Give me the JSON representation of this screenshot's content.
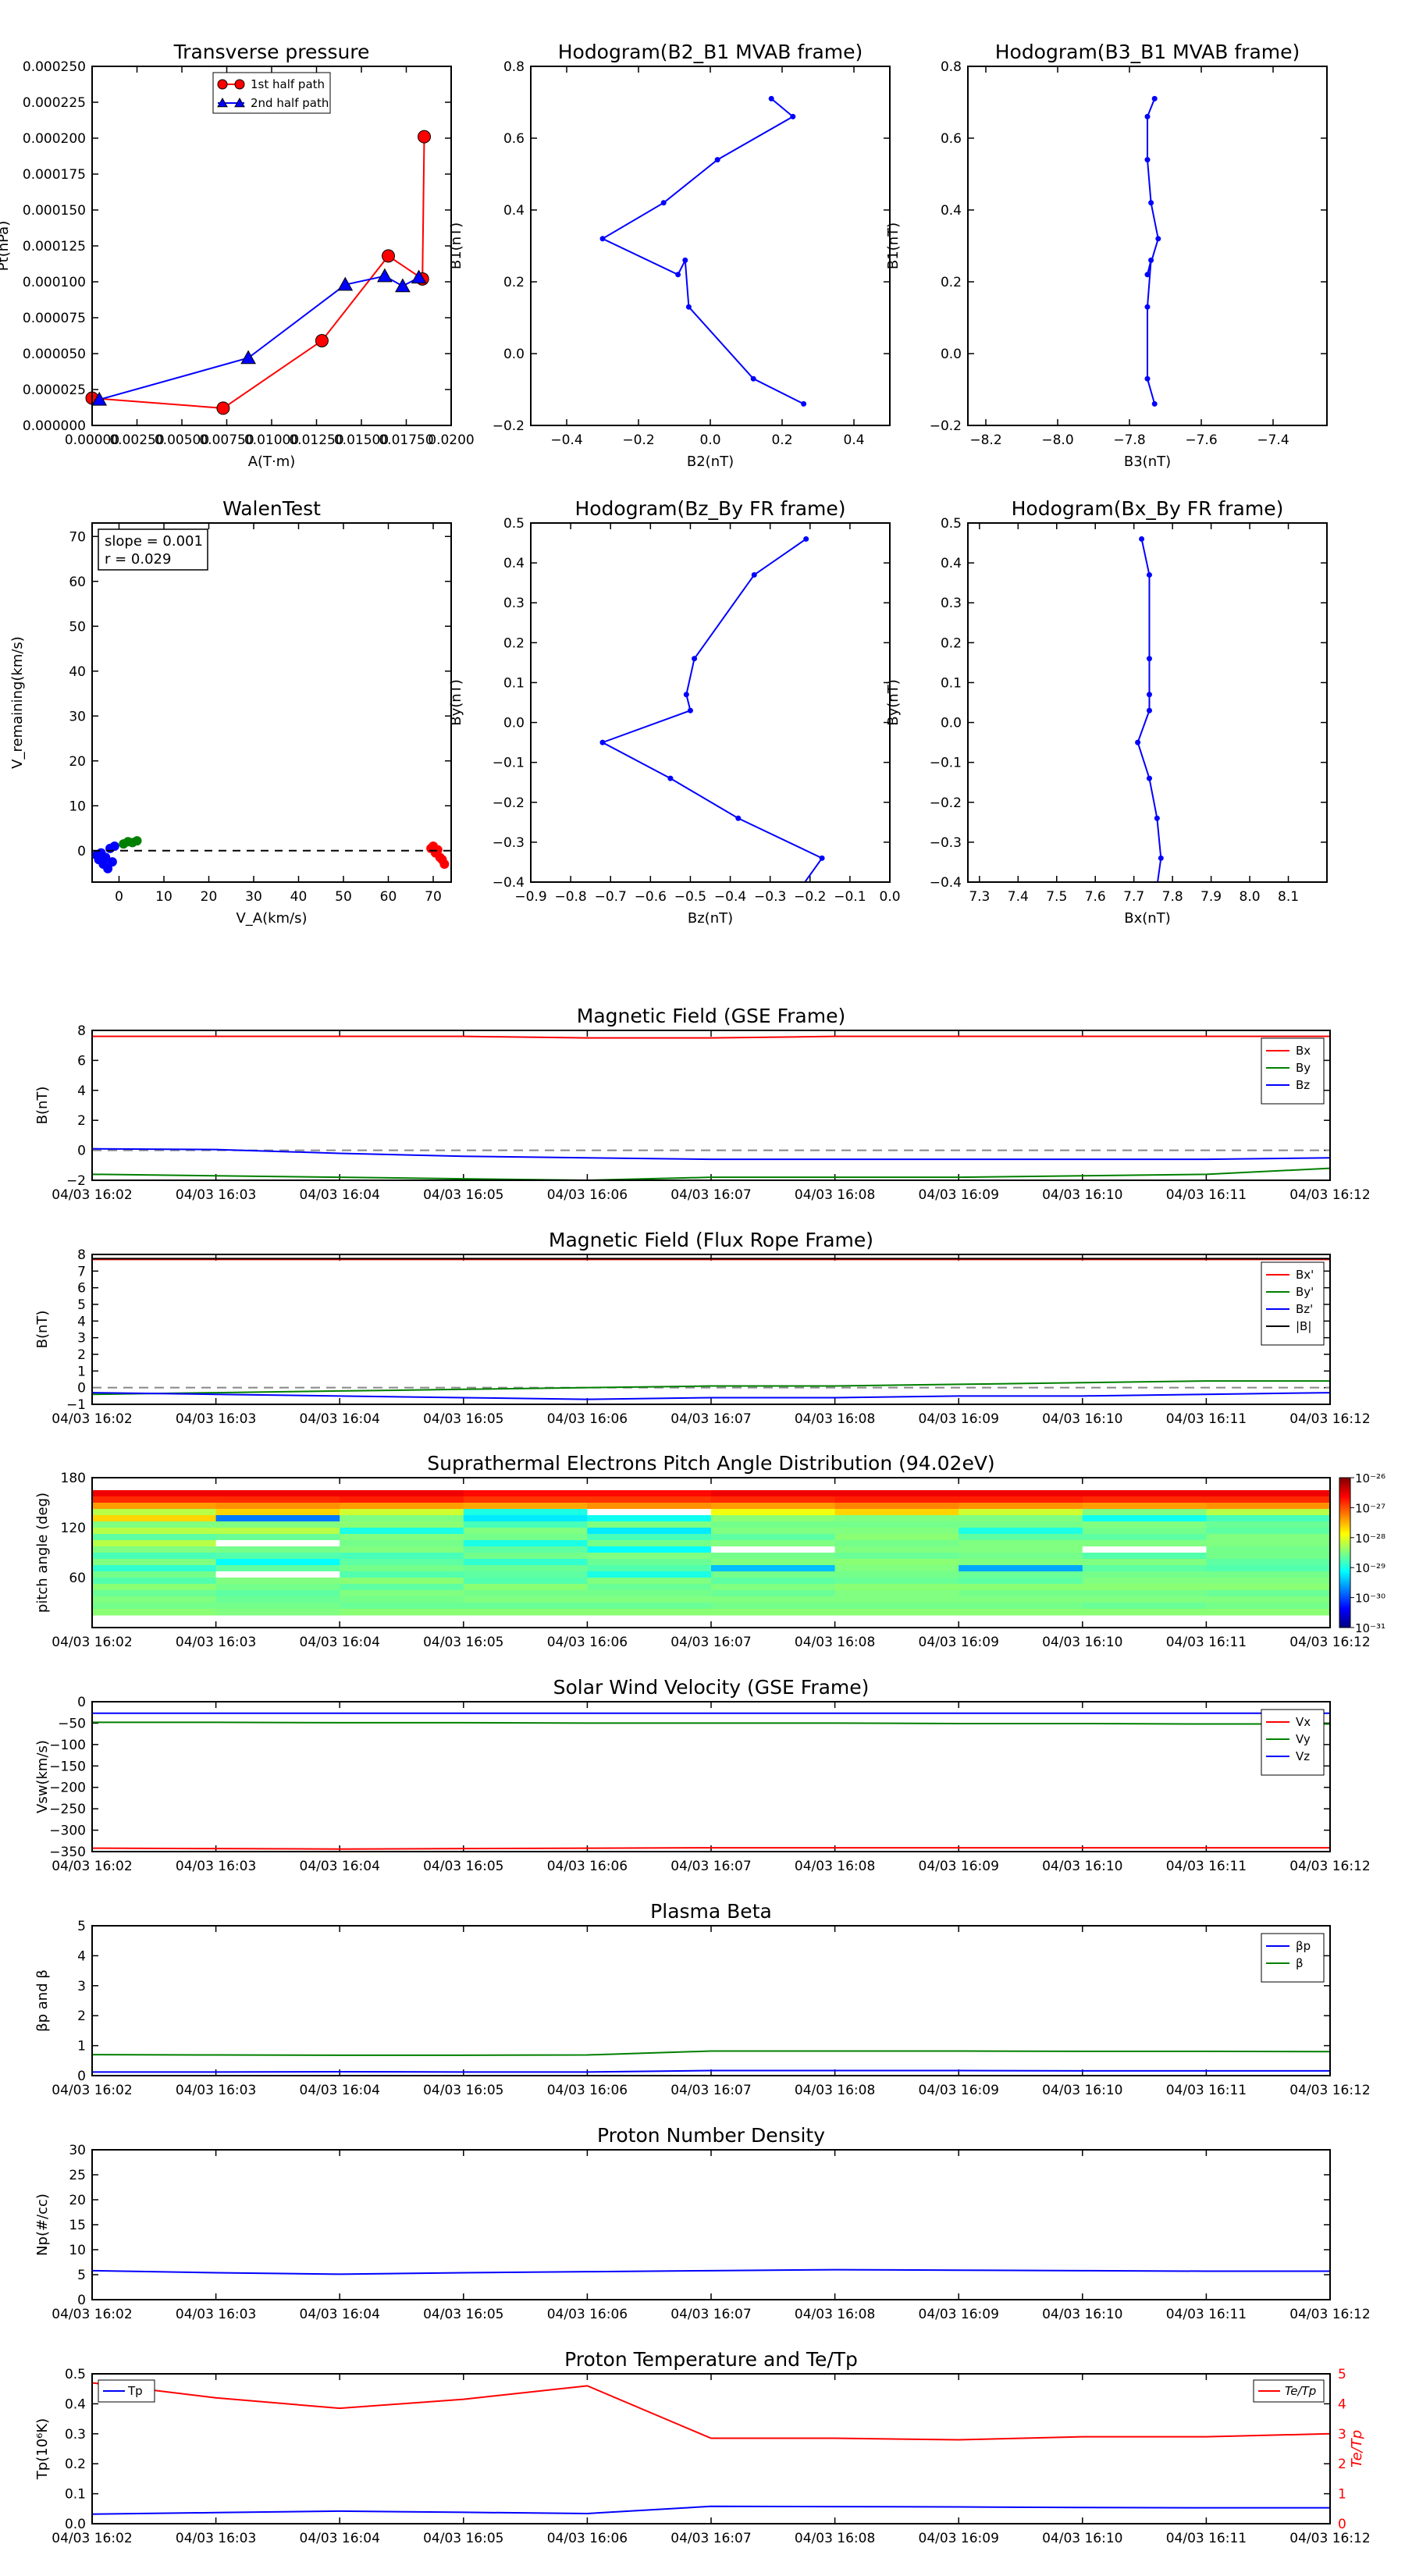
{
  "chart_data": [
    {
      "id": "tp",
      "type": "line",
      "title": "Transverse pressure",
      "xlabel": "A(T·m)",
      "ylabel": "Pt(nPa)",
      "xlim": [
        0,
        0.02
      ],
      "ylim": [
        0,
        0.00025
      ],
      "xticks": [
        "0.00000",
        "0.00250",
        "0.00500",
        "0.00750",
        "0.01000",
        "0.01250",
        "0.01500",
        "0.01750",
        "0.0200"
      ],
      "yticks": [
        "0.000000",
        "0.000025",
        "0.000050",
        "0.000075",
        "0.000100",
        "0.000125",
        "0.000150",
        "0.000175",
        "0.000200",
        "0.000225",
        "0.000250"
      ],
      "legend": "top-center",
      "series": [
        {
          "name": "1st half path",
          "color": "#ff0000",
          "marker": "circle",
          "x": [
            0.0,
            0.0073,
            0.0128,
            0.0165,
            0.0184,
            0.0185
          ],
          "y": [
            1.9e-05,
            1.2e-05,
            5.9e-05,
            0.000118,
            0.000102,
            0.000201
          ]
        },
        {
          "name": "2nd half path",
          "color": "#0000ff",
          "marker": "triangle",
          "x": [
            0.0004,
            0.0087,
            0.0141,
            0.0163,
            0.0173,
            0.0182
          ],
          "y": [
            1.8e-05,
            4.7e-05,
            9.8e-05,
            0.000104,
            9.7e-05,
            0.000103
          ]
        }
      ]
    },
    {
      "id": "h1",
      "type": "line",
      "title": "Hodogram(B2_B1 MVAB frame)",
      "xlabel": "B2(nT)",
      "ylabel": "B1(nT)",
      "xlim": [
        -0.5,
        0.5
      ],
      "ylim": [
        -0.2,
        0.8
      ],
      "xticks": [
        "−0.4",
        "−0.2",
        "0.0",
        "0.2",
        "0.4"
      ],
      "yticks": [
        "−0.2",
        "0.0",
        "0.2",
        "0.4",
        "0.6",
        "0.8"
      ],
      "series": [
        {
          "color": "#0000ff",
          "x": [
            0.17,
            0.23,
            0.02,
            -0.13,
            -0.3,
            -0.09,
            -0.07,
            -0.06,
            0.12,
            0.26
          ],
          "y": [
            0.71,
            0.66,
            0.54,
            0.42,
            0.32,
            0.22,
            0.26,
            0.13,
            -0.07,
            -0.14
          ]
        }
      ]
    },
    {
      "id": "h2",
      "type": "line",
      "title": "Hodogram(B3_B1 MVAB frame)",
      "xlabel": "B3(nT)",
      "ylabel": "B1(nT)",
      "xlim": [
        -8.25,
        -7.25
      ],
      "ylim": [
        -0.2,
        0.8
      ],
      "xticks": [
        "−8.2",
        "−8.0",
        "−7.8",
        "−7.6",
        "−7.4"
      ],
      "yticks": [
        "−0.2",
        "0.0",
        "0.2",
        "0.4",
        "0.6",
        "0.8"
      ],
      "series": [
        {
          "color": "#0000ff",
          "x": [
            -7.73,
            -7.75,
            -7.75,
            -7.74,
            -7.72,
            -7.75,
            -7.74,
            -7.75,
            -7.75,
            -7.73
          ],
          "y": [
            0.71,
            0.66,
            0.54,
            0.42,
            0.32,
            0.22,
            0.26,
            0.13,
            -0.07,
            -0.14
          ]
        }
      ]
    },
    {
      "id": "walen",
      "type": "scatter",
      "title": "WalenTest",
      "xlabel": "V_A(km/s)",
      "ylabel": "V_remaining(km/s)",
      "xlim": [
        -6,
        74
      ],
      "ylim": [
        -7,
        73
      ],
      "xticks": [
        "0",
        "10",
        "20",
        "30",
        "40",
        "50",
        "60",
        "70"
      ],
      "yticks": [
        "0",
        "10",
        "20",
        "30",
        "40",
        "50",
        "60",
        "70"
      ],
      "annotation": [
        "slope = 0.001",
        "r = 0.029"
      ],
      "series": [
        {
          "color": "#0000ff",
          "x": [
            -5,
            -4.5,
            -4,
            -3.5,
            -3,
            -2.5,
            -2,
            -1.5,
            -1
          ],
          "y": [
            -1,
            -2,
            -0.5,
            -3,
            -1.5,
            -4,
            0.5,
            -2.5,
            1
          ]
        },
        {
          "color": "#008000",
          "x": [
            1,
            2,
            3,
            4
          ],
          "y": [
            1.5,
            2,
            1.8,
            2.2
          ]
        },
        {
          "color": "#ff0000",
          "x": [
            69.5,
            70,
            70.5,
            71,
            71.5,
            72,
            72.5
          ],
          "y": [
            0.5,
            1,
            -0.5,
            0.2,
            -1.5,
            -2,
            -3
          ]
        }
      ]
    },
    {
      "id": "h3",
      "type": "line",
      "title": "Hodogram(Bz_By FR frame)",
      "xlabel": "Bz(nT)",
      "ylabel": "By(nT)",
      "xlim": [
        -0.9,
        0.0
      ],
      "ylim": [
        -0.4,
        0.5
      ],
      "xticks": [
        "−0.9",
        "−0.8",
        "−0.7",
        "−0.6",
        "−0.5",
        "−0.4",
        "−0.3",
        "−0.2",
        "−0.1",
        "0.0"
      ],
      "yticks": [
        "−0.4",
        "−0.3",
        "−0.2",
        "−0.1",
        "0.0",
        "0.1",
        "0.2",
        "0.3",
        "0.4",
        "0.5"
      ],
      "series": [
        {
          "color": "#0000ff",
          "x": [
            -0.21,
            -0.34,
            -0.49,
            -0.51,
            -0.5,
            -0.72,
            -0.55,
            -0.38,
            -0.17,
            -0.22
          ],
          "y": [
            0.46,
            0.37,
            0.16,
            0.07,
            0.03,
            -0.05,
            -0.14,
            -0.24,
            -0.34,
            -0.41
          ]
        }
      ]
    },
    {
      "id": "h4",
      "type": "line",
      "title": "Hodogram(Bx_By FR frame)",
      "xlabel": "Bx(nT)",
      "ylabel": "By(nT)",
      "xlim": [
        7.27,
        8.2
      ],
      "ylim": [
        -0.4,
        0.5
      ],
      "xticks": [
        "7.3",
        "7.4",
        "7.5",
        "7.6",
        "7.7",
        "7.8",
        "7.9",
        "8.0",
        "8.1"
      ],
      "yticks": [
        "−0.4",
        "−0.3",
        "−0.2",
        "−0.1",
        "0.0",
        "0.1",
        "0.2",
        "0.3",
        "0.4",
        "0.5"
      ],
      "series": [
        {
          "color": "#0000ff",
          "x": [
            7.72,
            7.74,
            7.74,
            7.74,
            7.74,
            7.71,
            7.74,
            7.76,
            7.77,
            7.76
          ],
          "y": [
            0.46,
            0.37,
            0.16,
            0.07,
            0.03,
            -0.05,
            -0.14,
            -0.24,
            -0.34,
            -0.41
          ]
        }
      ]
    },
    {
      "id": "mag_gse",
      "type": "line",
      "title": "Magnetic Field (GSE Frame)",
      "ylabel": "B(nT)",
      "ylim": [
        -2,
        8
      ],
      "yticks": [
        "−2",
        "0",
        "2",
        "4",
        "6",
        "8"
      ],
      "categories": [
        "04/03 16:02",
        "04/03 16:03",
        "04/03 16:04",
        "04/03 16:05",
        "04/03 16:06",
        "04/03 16:07",
        "04/03 16:08",
        "04/03 16:09",
        "04/03 16:10",
        "04/03 16:11",
        "04/03 16:12"
      ],
      "zero_line": true,
      "legend": "right",
      "series": [
        {
          "name": "Bx",
          "color": "#ff0000",
          "values": [
            7.6,
            7.6,
            7.6,
            7.6,
            7.5,
            7.5,
            7.6,
            7.6,
            7.6,
            7.6,
            7.6
          ]
        },
        {
          "name": "By",
          "color": "#008000",
          "values": [
            -1.6,
            -1.7,
            -1.8,
            -1.9,
            -2.0,
            -1.8,
            -1.8,
            -1.8,
            -1.7,
            -1.6,
            -1.2
          ]
        },
        {
          "name": "Bz",
          "color": "#0000ff",
          "values": [
            0.1,
            0.05,
            -0.2,
            -0.4,
            -0.5,
            -0.6,
            -0.6,
            -0.6,
            -0.6,
            -0.6,
            -0.5
          ]
        }
      ]
    },
    {
      "id": "mag_fr",
      "type": "line",
      "title": "Magnetic Field (Flux Rope Frame)",
      "ylabel": "B(nT)",
      "ylim": [
        -1,
        8
      ],
      "yticks": [
        "−1",
        "0",
        "1",
        "2",
        "3",
        "4",
        "5",
        "6",
        "7",
        "8"
      ],
      "categories": [
        "04/03 16:02",
        "04/03 16:03",
        "04/03 16:04",
        "04/03 16:05",
        "04/03 16:06",
        "04/03 16:07",
        "04/03 16:08",
        "04/03 16:09",
        "04/03 16:10",
        "04/03 16:11",
        "04/03 16:12"
      ],
      "zero_line": true,
      "legend": "right",
      "series": [
        {
          "name": "Bx'",
          "color": "#ff0000",
          "values": [
            7.7,
            7.7,
            7.7,
            7.7,
            7.7,
            7.7,
            7.7,
            7.7,
            7.7,
            7.7,
            7.7
          ]
        },
        {
          "name": "By'",
          "color": "#008000",
          "values": [
            -0.4,
            -0.3,
            -0.2,
            -0.1,
            0.0,
            0.1,
            0.1,
            0.2,
            0.3,
            0.4,
            0.4
          ]
        },
        {
          "name": "Bz'",
          "color": "#0000ff",
          "values": [
            -0.3,
            -0.4,
            -0.5,
            -0.6,
            -0.7,
            -0.6,
            -0.6,
            -0.5,
            -0.5,
            -0.4,
            -0.3
          ]
        },
        {
          "name": "|B|",
          "color": "#000000",
          "values": [
            7.75,
            7.75,
            7.75,
            7.75,
            7.75,
            7.75,
            7.75,
            7.75,
            7.75,
            7.75,
            7.75
          ]
        }
      ]
    },
    {
      "id": "pad",
      "type": "heatmap",
      "title": "Suprathermal Electrons Pitch Angle Distribution (94.02eV)",
      "ylabel": "pitch angle (deg)",
      "ylim": [
        0,
        180
      ],
      "yticks": [
        "60",
        "120",
        "180"
      ],
      "ytick_values": [
        60,
        120,
        180
      ],
      "categories": [
        "04/03 16:02",
        "04/03 16:03",
        "04/03 16:04",
        "04/03 16:05",
        "04/03 16:06",
        "04/03 16:07",
        "04/03 16:08",
        "04/03 16:09",
        "04/03 16:10",
        "04/03 16:11",
        "04/03 16:12"
      ],
      "colorbar_ticks": [
        "10⁻²⁶",
        "10⁻²⁷",
        "10⁻²⁸",
        "10⁻²⁹",
        "10⁻³⁰",
        "10⁻³¹"
      ],
      "bins_top_to_bottom": 20,
      "columns": [
        [
          8,
          7.5,
          6.5,
          5,
          6,
          4.5,
          5,
          4.2,
          5,
          4.5,
          4,
          4.5,
          3.8,
          4.4,
          4.1,
          4.6,
          4.3,
          4.5,
          4.4,
          4.6
        ],
        [
          8,
          7.5,
          6.6,
          6,
          2.2,
          4.5,
          5,
          4.3,
          9,
          4.4,
          4.1,
          3.4,
          4.2,
          9,
          4.5,
          4.4,
          4.2,
          4.3,
          4.4,
          4.5
        ],
        [
          8,
          7.6,
          6.5,
          5.2,
          4.5,
          4.6,
          3.6,
          4.5,
          4.4,
          4.5,
          4,
          4.2,
          4.4,
          4.1,
          4.6,
          4.2,
          4.5,
          4.4,
          4.3,
          4.6
        ],
        [
          7.8,
          7.4,
          6.4,
          3.6,
          3.2,
          4,
          4.5,
          4.4,
          3.6,
          4.2,
          4.4,
          3.8,
          4.3,
          4.2,
          4.1,
          4.6,
          4.4,
          4.5,
          4.3,
          4.6
        ],
        [
          7.8,
          7.4,
          6.6,
          9,
          3.5,
          4.5,
          3.2,
          4,
          4.4,
          3.4,
          4.5,
          4.3,
          4.1,
          3.6,
          4.5,
          4.3,
          4.4,
          4.5,
          4.3,
          4.6
        ],
        [
          8,
          7.5,
          6.5,
          5.5,
          4.6,
          4.4,
          4.5,
          4.2,
          4.5,
          9,
          4.4,
          4.5,
          2.8,
          4.4,
          4.2,
          4.5,
          4.3,
          4.5,
          4.4,
          4.6
        ],
        [
          8,
          7.6,
          6.7,
          6,
          4.5,
          4.4,
          4.5,
          4.6,
          4.4,
          4.5,
          4.3,
          4.6,
          4.5,
          4.4,
          4.3,
          4.6,
          4.5,
          4.5,
          4.4,
          4.6
        ],
        [
          8,
          7.6,
          6.6,
          5.2,
          4.5,
          4.4,
          3.6,
          4.2,
          4.5,
          4.5,
          4.4,
          4.5,
          2.6,
          4.3,
          4.2,
          4.6,
          4.4,
          4.5,
          4.4,
          4.6
        ],
        [
          8,
          7.5,
          6.5,
          4.5,
          3.5,
          4.5,
          4.4,
          4.2,
          4.5,
          9,
          4.1,
          4.5,
          4.2,
          4.4,
          4.5,
          4.6,
          4.4,
          4.5,
          4.3,
          4.6
        ],
        [
          8,
          7.5,
          6.6,
          5,
          4,
          4.3,
          4.2,
          4.5,
          4.5,
          4.4,
          4.4,
          4.2,
          4.1,
          4.4,
          4.5,
          4.6,
          4.3,
          4.5,
          4.4,
          4.6
        ]
      ]
    },
    {
      "id": "vsw",
      "type": "line",
      "title": "Solar Wind Velocity (GSE Frame)",
      "ylabel": "Vsw(km/s)",
      "ylim": [
        -350,
        0
      ],
      "yticks": [
        "−350",
        "−300",
        "−250",
        "−200",
        "−150",
        "−100",
        "−50",
        "0"
      ],
      "categories": [
        "04/03 16:02",
        "04/03 16:03",
        "04/03 16:04",
        "04/03 16:05",
        "04/03 16:06",
        "04/03 16:07",
        "04/03 16:08",
        "04/03 16:09",
        "04/03 16:10",
        "04/03 16:11",
        "04/03 16:12"
      ],
      "legend": "right",
      "series": [
        {
          "name": "Vx",
          "color": "#ff0000",
          "values": [
            -342,
            -343,
            -344,
            -343,
            -342,
            -341,
            -341,
            -341,
            -341,
            -341,
            -341
          ]
        },
        {
          "name": "Vy",
          "color": "#008000",
          "values": [
            -48,
            -48,
            -49,
            -49,
            -50,
            -50,
            -50,
            -51,
            -51,
            -52,
            -52
          ]
        },
        {
          "name": "Vz",
          "color": "#0000ff",
          "values": [
            -27,
            -27,
            -27,
            -27,
            -27,
            -27,
            -27,
            -27,
            -27,
            -27,
            -27
          ]
        }
      ]
    },
    {
      "id": "beta",
      "type": "line",
      "title": "Plasma Beta",
      "ylabel": "βp and β",
      "ylim": [
        0,
        5
      ],
      "yticks": [
        "0",
        "1",
        "2",
        "3",
        "4",
        "5"
      ],
      "categories": [
        "04/03 16:02",
        "04/03 16:03",
        "04/03 16:04",
        "04/03 16:05",
        "04/03 16:06",
        "04/03 16:07",
        "04/03 16:08",
        "04/03 16:09",
        "04/03 16:10",
        "04/03 16:11",
        "04/03 16:12"
      ],
      "legend": "right",
      "series": [
        {
          "name": "βp",
          "color": "#0000ff",
          "values": [
            0.12,
            0.12,
            0.13,
            0.12,
            0.12,
            0.17,
            0.17,
            0.17,
            0.16,
            0.16,
            0.16
          ]
        },
        {
          "name": "β",
          "color": "#008000",
          "values": [
            0.7,
            0.69,
            0.68,
            0.68,
            0.69,
            0.82,
            0.82,
            0.82,
            0.81,
            0.81,
            0.8
          ]
        }
      ]
    },
    {
      "id": "np",
      "type": "line",
      "title": "Proton Number Density",
      "ylabel": "Np(#/cc)",
      "ylim": [
        0,
        30
      ],
      "yticks": [
        "0",
        "5",
        "10",
        "15",
        "20",
        "25",
        "30"
      ],
      "categories": [
        "04/03 16:02",
        "04/03 16:03",
        "04/03 16:04",
        "04/03 16:05",
        "04/03 16:06",
        "04/03 16:07",
        "04/03 16:08",
        "04/03 16:09",
        "04/03 16:10",
        "04/03 16:11",
        "04/03 16:12"
      ],
      "series": [
        {
          "color": "#0000ff",
          "values": [
            5.8,
            5.4,
            5.1,
            5.4,
            5.6,
            5.8,
            6.0,
            5.9,
            5.8,
            5.7,
            5.7
          ]
        }
      ]
    },
    {
      "id": "temp",
      "type": "line",
      "title": "Proton Temperature and Te/Tp",
      "ylabel": "Tp(10⁶K)",
      "ylabel_right": "Te/Tp",
      "ylim": [
        0,
        0.5
      ],
      "ylim_right": [
        0,
        5
      ],
      "yticks": [
        "0.0",
        "0.1",
        "0.2",
        "0.3",
        "0.4",
        "0.5"
      ],
      "yticks_right": [
        "0",
        "1",
        "2",
        "3",
        "4",
        "5"
      ],
      "categories": [
        "04/03 16:02",
        "04/03 16:03",
        "04/03 16:04",
        "04/03 16:05",
        "04/03 16:06",
        "04/03 16:07",
        "04/03 16:08",
        "04/03 16:09",
        "04/03 16:10",
        "04/03 16:11",
        "04/03 16:12"
      ],
      "series": [
        {
          "name": "Tp",
          "color": "#0000ff",
          "axis": "left",
          "values": [
            0.032,
            0.037,
            0.042,
            0.038,
            0.034,
            0.058,
            0.057,
            0.056,
            0.054,
            0.053,
            0.053
          ]
        },
        {
          "name": "Te/Tp",
          "color": "#ff0000",
          "axis": "right",
          "values": [
            4.7,
            4.2,
            3.85,
            4.15,
            4.6,
            2.85,
            2.85,
            2.8,
            2.9,
            2.9,
            3.0
          ]
        }
      ]
    }
  ]
}
